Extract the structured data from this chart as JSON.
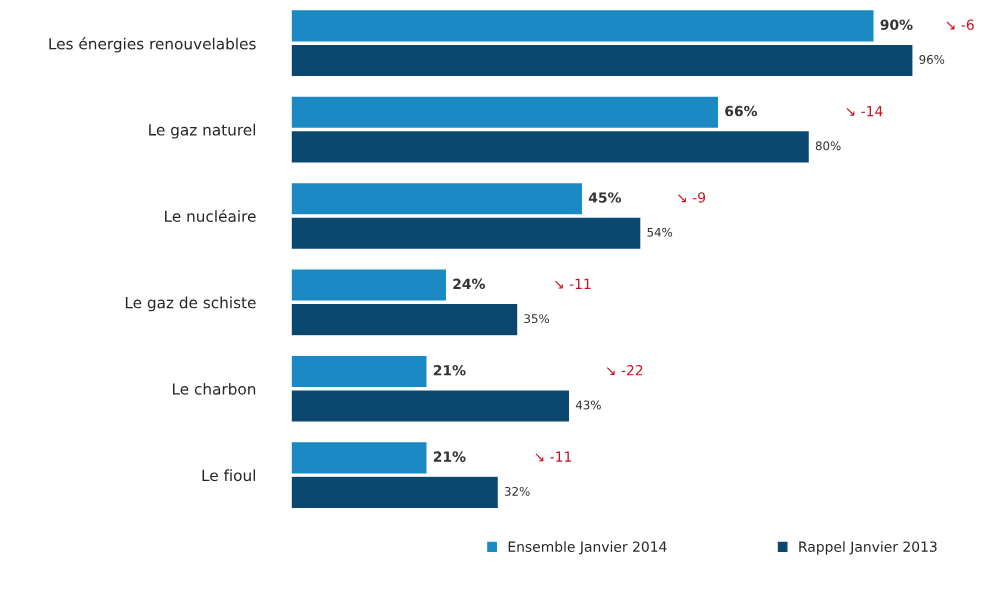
{
  "chart_data": {
    "type": "bar",
    "orientation": "horizontal",
    "categories": [
      "Les énergies renouvelables",
      "Le gaz naturel",
      "Le nucléaire",
      "Le gaz de schiste",
      "Le charbon",
      "Le fioul"
    ],
    "series": [
      {
        "name": "Ensemble Janvier 2014",
        "color": "#1b8ac4",
        "values": [
          90,
          66,
          45,
          24,
          21,
          21
        ],
        "value_labels": [
          "90%",
          "66%",
          "45%",
          "24%",
          "21%",
          "21%"
        ]
      },
      {
        "name": "Rappel Janvier 2013",
        "color": "#0b4870",
        "values": [
          96,
          80,
          54,
          35,
          43,
          32
        ],
        "value_labels": [
          "96%",
          "80%",
          "54%",
          "35%",
          "43%",
          "32%"
        ]
      }
    ],
    "annotations": [
      "↘ -6",
      "↘ -14",
      "↘ -9",
      "↘ -11",
      "↘ -22",
      "↘ -11"
    ],
    "legend": "bottom",
    "grid": false
  }
}
